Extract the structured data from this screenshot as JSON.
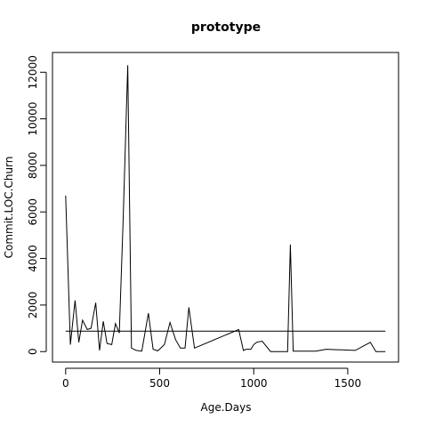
{
  "chart_data": {
    "type": "line",
    "title": "prototype",
    "xlabel": "Age.Days",
    "ylabel": "Commit.LOC.Churn",
    "xlim": [
      -70,
      1770
    ],
    "ylim": [
      -450,
      12850
    ],
    "x_ticks": [
      0,
      500,
      1000,
      1500
    ],
    "y_ticks": [
      0,
      2000,
      4000,
      6000,
      8000,
      10000,
      12000
    ],
    "grid": false,
    "legend": "none",
    "series": [
      {
        "x": [
          0,
          25,
          50,
          70,
          90,
          115,
          135,
          160,
          180,
          200,
          220,
          245,
          265,
          285,
          305,
          330,
          350,
          375,
          405,
          440,
          465,
          490,
          525,
          555,
          585,
          610,
          635,
          655,
          685,
          920,
          945,
          960,
          985,
          1000,
          1015,
          1045,
          1090,
          1180,
          1195,
          1210,
          1240,
          1330,
          1385,
          1540,
          1620,
          1650,
          1700
        ],
        "y": [
          6700,
          300,
          2200,
          400,
          1350,
          950,
          1000,
          2100,
          50,
          1300,
          350,
          300,
          1200,
          800,
          5500,
          12300,
          150,
          50,
          20,
          1650,
          100,
          30,
          300,
          1250,
          500,
          150,
          150,
          1900,
          150,
          950,
          50,
          100,
          100,
          300,
          400,
          450,
          0,
          0,
          4600,
          20,
          20,
          20,
          100,
          50,
          400,
          0,
          0
        ],
        "color": "#000000"
      },
      {
        "x": [
          0,
          1700
        ],
        "y": [
          880,
          880
        ],
        "color": "#000000"
      }
    ]
  }
}
